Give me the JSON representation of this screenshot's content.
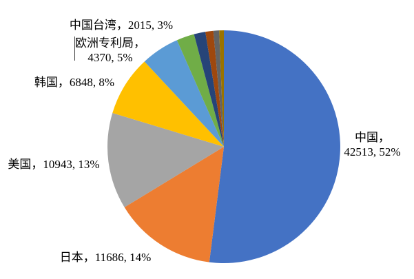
{
  "chart_data": {
    "type": "pie",
    "title": "",
    "legend": "none",
    "start_angle_deg": 0,
    "direction": "clockwise",
    "label_format": "name, value, percent",
    "background": "#ffffff",
    "slices": [
      {
        "label": "中国",
        "value": 42513,
        "pct": "52%",
        "color": "#4472C4"
      },
      {
        "label": "日本",
        "value": 11686,
        "pct": "14%",
        "color": "#ED7D31"
      },
      {
        "label": "美国",
        "value": 10943,
        "pct": "13%",
        "color": "#A5A5A5"
      },
      {
        "label": "韩国",
        "value": 6848,
        "pct": "8%",
        "color": "#FFC000"
      },
      {
        "label": "欧洲专利局",
        "value": 4370,
        "pct": "5%",
        "color": "#5B9BD5"
      },
      {
        "label": "中国台湾",
        "value": 2015,
        "pct": "3%",
        "color": "#70AD47"
      },
      {
        "label": "",
        "value": 1300,
        "pct": "",
        "color": "#264478",
        "estimated": true
      },
      {
        "label": "",
        "value": 900,
        "pct": "",
        "color": "#9E480E",
        "estimated": true
      },
      {
        "label": "",
        "value": 650,
        "pct": "",
        "color": "#636363",
        "estimated": true
      },
      {
        "label": "",
        "value": 530,
        "pct": "",
        "color": "#997300",
        "estimated": true
      }
    ]
  },
  "labels": {
    "taiwan": {
      "text": "中国台湾，2015, 3%"
    },
    "epo": {
      "text": "欧洲专利局，\n4370, 5%"
    },
    "korea": {
      "text": "韩国，6848, 8%"
    },
    "usa": {
      "text": "美国，10943, 13%"
    },
    "japan": {
      "text": "日本，11686, 14%"
    },
    "china": {
      "text": "中国，\n42513, 52%"
    }
  }
}
